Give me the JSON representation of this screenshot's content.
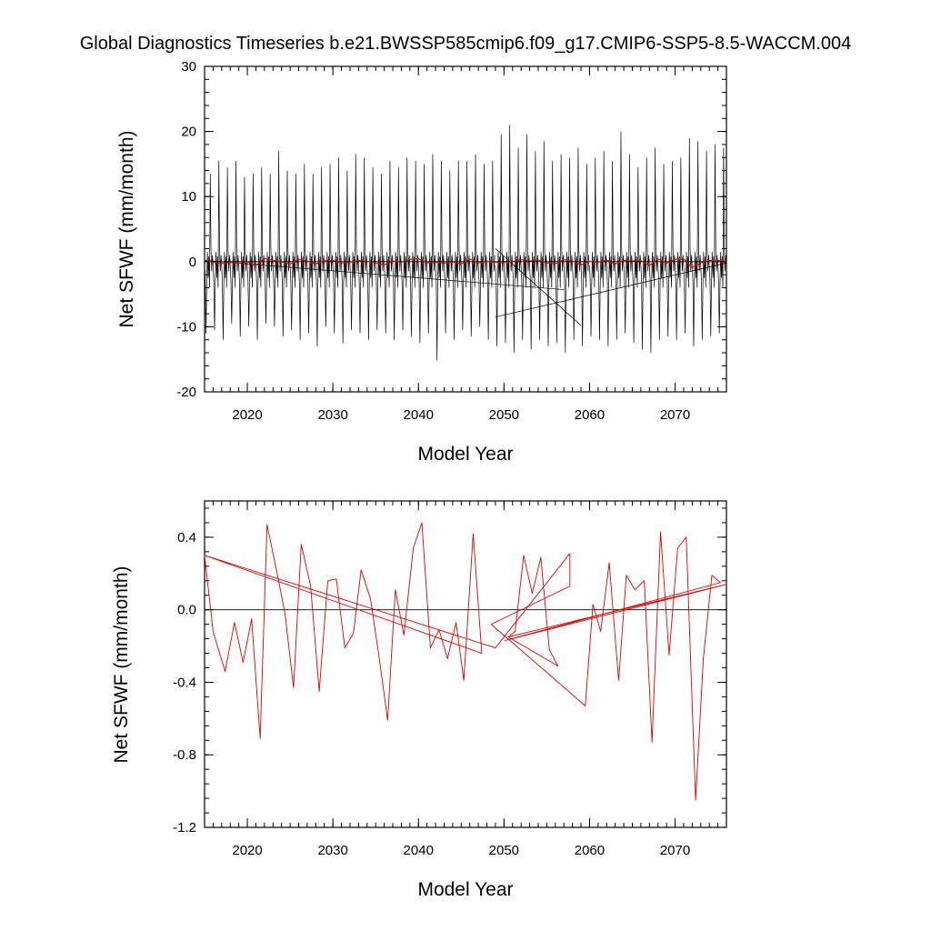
{
  "title": "Global Diagnostics Timeseries b.e21.BWSSP585cmip6.f09_g17.CMIP6-SSP5-8.5-WACCM.004",
  "colors": {
    "monthly": "#000000",
    "annual": "#e00000",
    "frame": "#000000",
    "zero_line": "#000000"
  },
  "chart_data": [
    {
      "type": "line",
      "name": "monthly-panel",
      "xlabel": "Model Year",
      "ylabel": "Net SFWF (mm/month)",
      "xlim": [
        2015,
        2076
      ],
      "ylim": [
        -20,
        30
      ],
      "x_ticks": [
        2020,
        2030,
        2040,
        2050,
        2060,
        2070
      ],
      "x_tick_labels": [
        "2020",
        "2030",
        "2040",
        "2050",
        "2060",
        "2070"
      ],
      "y_ticks": [
        -20,
        -10,
        0,
        10,
        20,
        30
      ],
      "y_tick_labels": [
        "-20",
        "-10",
        "0",
        "10",
        "20",
        "30"
      ],
      "reference_line": 0,
      "series": [
        {
          "name": "monthly",
          "color": "#000000",
          "segments": [
            {
              "start_year": 2015,
              "peaks": [
                13.5,
                15.5,
                14.5,
                15.5,
                13.0,
                13.5,
                14.5,
                13.5,
                17.0,
                14.0,
                13.5,
                15.0,
                13.5,
                14.5,
                15.0,
                16.0,
                14.0,
                16.5,
                16.0,
                14.5,
                13.5,
                15.5,
                14.5,
                16.0,
                15.5,
                15.0,
                16.5,
                15.5,
                14.0,
                15.5,
                15.5,
                16.5,
                15.0,
                15.5
              ],
              "troughs": [
                -11.0,
                -10.5,
                -12.0,
                -9.5,
                -11.5,
                -10.0,
                -12.0,
                -9.5,
                -10.0,
                -11.5,
                -10.5,
                -12.0,
                -11.0,
                -13.0,
                -10.0,
                -11.0,
                -12.5,
                -10.5,
                -11.0,
                -12.0,
                -10.5,
                -11.0,
                -12.0,
                -10.5,
                -11.5,
                -12.5,
                -11.0,
                -15.2,
                -11.0,
                -12.0,
                -10.5,
                -11.5,
                -10.0,
                -12.0
              ]
            },
            {
              "start_year": 2049,
              "peaks": [
                19.5,
                21.0,
                17.5,
                19.5,
                17.0,
                18.5,
                15.5,
                16.5,
                16.0,
                17.5,
                15.0
              ],
              "troughs": [
                -13.0,
                -12.5,
                -14.0,
                -12.0,
                -13.5,
                -12.0,
                -13.0,
                -12.5,
                -14.0,
                -12.0,
                -13.0
              ]
            },
            {
              "start_year": 2060,
              "peaks": [
                16.0,
                17.0,
                15.5,
                20.0,
                16.5,
                14.5,
                16.0,
                17.5,
                15.0,
                15.5,
                16.0,
                19.0,
                18.5,
                17.0,
                18.0,
                17.5
              ],
              "troughs": [
                -11.5,
                -12.0,
                -13.0,
                -12.0,
                -11.0,
                -12.5,
                -13.5,
                -14.0,
                -12.0,
                -11.5,
                -12.0,
                -11.0,
                -13.0,
                -12.0,
                -11.5,
                -11.0
              ]
            }
          ],
          "connectors": [
            {
              "from": [
                2015,
                0.2
              ],
              "to": [
                2057,
                -4.3
              ]
            },
            {
              "from": [
                2049,
                2.0
              ],
              "to": [
                2059,
                -9.8
              ]
            },
            {
              "from": [
                2049,
                -8.5
              ],
              "to": [
                2076,
                -0.2
              ]
            }
          ]
        },
        {
          "name": "annual",
          "color": "#e00000",
          "x": [
            2015,
            2016,
            2017,
            2018,
            2019,
            2020,
            2021,
            2022,
            2023,
            2024,
            2025,
            2026,
            2027,
            2028,
            2029,
            2030,
            2031,
            2032,
            2033,
            2034,
            2035,
            2036,
            2037,
            2038,
            2039,
            2040,
            2041,
            2042,
            2043,
            2044,
            2045,
            2046,
            2047,
            2048,
            2049,
            2050,
            2051,
            2052,
            2053,
            2054,
            2055,
            2056,
            2057,
            2058,
            2059,
            2060,
            2061,
            2062,
            2063,
            2064,
            2065,
            2066,
            2067,
            2068,
            2069,
            2070,
            2071,
            2072,
            2073,
            2074,
            2075,
            2076
          ],
          "y": [
            0.25,
            -0.1,
            -0.3,
            -0.1,
            -0.25,
            -0.05,
            -0.6,
            0.45,
            0.2,
            -0.05,
            -0.35,
            0.35,
            0.1,
            -0.35,
            0.15,
            0.2,
            -0.2,
            -0.1,
            0.2,
            0.05,
            -0.2,
            -0.5,
            0.1,
            -0.1,
            0.35,
            0.45,
            -0.2,
            -0.1,
            -0.25,
            -0.05,
            -0.35,
            0.4,
            -0.2,
            0.0,
            -0.1,
            -0.15,
            0.0,
            0.3,
            0.1,
            0.25,
            -0.2,
            -0.3,
            0.3,
            0.1,
            -0.5,
            0.05,
            -0.1,
            0.25,
            -0.35,
            0.2,
            0.1,
            0.15,
            -0.6,
            0.4,
            -0.25,
            0.35,
            0.4,
            -0.9,
            -0.2,
            0.2,
            0.15,
            0.1
          ]
        }
      ]
    },
    {
      "type": "line",
      "name": "annual-panel",
      "xlabel": "Model Year",
      "ylabel": "Net SFWF (mm/month)",
      "xlim": [
        2015,
        2076
      ],
      "ylim": [
        -1.2,
        0.6
      ],
      "x_ticks": [
        2020,
        2030,
        2040,
        2050,
        2060,
        2070
      ],
      "x_tick_labels": [
        "2020",
        "2030",
        "2040",
        "2050",
        "2060",
        "2070"
      ],
      "y_ticks": [
        -1.2,
        -0.8,
        -0.4,
        0.0,
        0.4
      ],
      "y_tick_labels": [
        "-1.2",
        "-0.8",
        "-0.4",
        "0.0",
        "0.4"
      ],
      "reference_line": 0,
      "series": [
        {
          "name": "annual",
          "color": "#e00000",
          "points": [
            [
              2015.0,
              0.3
            ],
            [
              2016.0,
              -0.12
            ],
            [
              2017.4,
              -0.34
            ],
            [
              2018.5,
              -0.07
            ],
            [
              2019.5,
              -0.29
            ],
            [
              2020.5,
              -0.05
            ],
            [
              2021.5,
              -0.71
            ],
            [
              2022.3,
              0.47
            ],
            [
              2023.4,
              0.22
            ],
            [
              2024.4,
              -0.02
            ],
            [
              2025.4,
              -0.43
            ],
            [
              2026.3,
              0.36
            ],
            [
              2027.4,
              0.13
            ],
            [
              2028.4,
              -0.45
            ],
            [
              2029.4,
              0.16
            ],
            [
              2030.4,
              0.17
            ],
            [
              2031.4,
              -0.21
            ],
            [
              2032.4,
              -0.13
            ],
            [
              2033.3,
              0.22
            ],
            [
              2034.4,
              0.06
            ],
            [
              2035.4,
              -0.26
            ],
            [
              2036.4,
              -0.61
            ],
            [
              2037.3,
              0.11
            ],
            [
              2038.3,
              -0.14
            ],
            [
              2039.4,
              0.34
            ],
            [
              2040.4,
              0.48
            ],
            [
              2041.4,
              -0.21
            ],
            [
              2042.4,
              -0.11
            ],
            [
              2043.4,
              -0.27
            ],
            [
              2044.4,
              -0.07
            ],
            [
              2045.3,
              -0.39
            ],
            [
              2046.4,
              0.42
            ],
            [
              2047.4,
              -0.24
            ],
            [
              2015.0,
              0.3
            ],
            [
              2049.0,
              -0.21
            ],
            [
              2057.7,
              0.31
            ],
            [
              2057.7,
              0.13
            ],
            [
              2048.5,
              -0.08
            ],
            [
              2059.5,
              -0.53
            ],
            [
              2060.4,
              0.03
            ],
            [
              2061.3,
              -0.12
            ],
            [
              2062.3,
              0.26
            ],
            [
              2063.4,
              -0.39
            ],
            [
              2064.3,
              0.19
            ],
            [
              2065.3,
              0.11
            ],
            [
              2066.4,
              0.16
            ],
            [
              2067.3,
              -0.73
            ],
            [
              2068.3,
              0.43
            ],
            [
              2069.3,
              -0.25
            ],
            [
              2070.3,
              0.34
            ],
            [
              2071.3,
              0.4
            ],
            [
              2072.4,
              -1.05
            ],
            [
              2073.3,
              -0.27
            ],
            [
              2074.3,
              0.19
            ],
            [
              2075.3,
              0.15
            ],
            [
              2050.1,
              -0.17
            ],
            [
              2076.0,
              0.14
            ],
            [
              2050.5,
              -0.15
            ],
            [
              2051.3,
              -0.12
            ],
            [
              2052.3,
              0.3
            ],
            [
              2053.3,
              0.09
            ],
            [
              2054.3,
              0.29
            ],
            [
              2055.3,
              -0.22
            ],
            [
              2056.3,
              -0.31
            ],
            [
              2050.5,
              -0.15
            ]
          ]
        }
      ]
    }
  ]
}
